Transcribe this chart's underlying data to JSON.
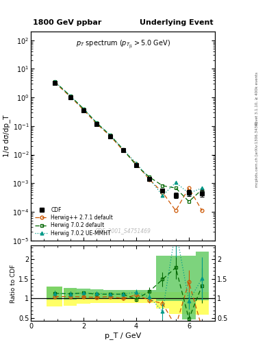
{
  "title_left": "1800 GeV ppbar",
  "title_right": "Underlying Event",
  "ylabel_main": "1/σ dσ/dp_T",
  "ylabel_ratio": "Ratio to CDF",
  "xlabel": "p_T / GeV",
  "watermark": "CDF_2001_S4751469",
  "right_label_top": "Rivet 3.1.10, ≥ 400k events",
  "right_label_bot": "mcplots.cern.ch [arXiv:1306.3436]",
  "cdf_x": [
    0.9,
    1.5,
    2.0,
    2.5,
    3.0,
    3.5,
    4.0,
    4.5,
    5.0,
    5.5,
    6.0,
    6.5
  ],
  "cdf_y": [
    3.2,
    1.0,
    0.35,
    0.115,
    0.044,
    0.014,
    0.0043,
    0.0014,
    0.00055,
    0.00038,
    0.00048,
    0.00045
  ],
  "cdf_yerr": [
    0.18,
    0.05,
    0.018,
    0.006,
    0.002,
    0.0007,
    0.00022,
    8e-05,
    6e-05,
    8e-05,
    0.00012,
    0.00012
  ],
  "hwpp_y": [
    3.35,
    1.05,
    0.365,
    0.118,
    0.046,
    0.014,
    0.0047,
    0.00135,
    0.00048,
    0.00011,
    0.00068,
    0.00011
  ],
  "hw702_y": [
    3.6,
    1.12,
    0.4,
    0.128,
    0.049,
    0.0155,
    0.0042,
    0.00165,
    0.00082,
    0.00068,
    0.00023,
    0.0006
  ],
  "hwue_y": [
    3.6,
    1.12,
    0.4,
    0.13,
    0.049,
    0.0155,
    0.005,
    0.00145,
    0.00037,
    0.00105,
    0.00045,
    0.00068
  ],
  "colors": {
    "cdf": "#000000",
    "hwpp": "#cc5500",
    "hw702": "#006600",
    "hwue": "#009988"
  },
  "xlim": [
    0,
    7
  ],
  "ylim_main": [
    1e-05,
    200
  ],
  "ylim_ratio": [
    0.42,
    2.35
  ],
  "ratio_hwpp": [
    1.05,
    1.05,
    1.04,
    1.03,
    1.05,
    1.0,
    1.09,
    0.96,
    0.87,
    0.29,
    1.42,
    0.24
  ],
  "ratio_hw702": [
    1.13,
    1.12,
    1.14,
    1.11,
    1.11,
    1.11,
    0.98,
    1.18,
    1.49,
    1.79,
    0.48,
    1.33
  ],
  "ratio_hwue": [
    1.13,
    1.12,
    1.14,
    1.13,
    1.11,
    1.11,
    1.16,
    1.04,
    0.67,
    2.76,
    0.94,
    1.51
  ],
  "ratio_hwpp_err": [
    0.06,
    0.05,
    0.04,
    0.04,
    0.04,
    0.04,
    0.06,
    0.07,
    0.09,
    0.1,
    0.3,
    0.1
  ],
  "ratio_hw702_err": [
    0.07,
    0.06,
    0.05,
    0.05,
    0.04,
    0.05,
    0.06,
    0.1,
    0.18,
    0.3,
    0.18,
    0.45
  ],
  "ratio_hwue_err": [
    0.07,
    0.06,
    0.05,
    0.05,
    0.04,
    0.05,
    0.07,
    0.1,
    0.2,
    0.7,
    0.22,
    0.55
  ],
  "yellow_lo": [
    0.8,
    0.82,
    0.87,
    0.88,
    0.89,
    0.89,
    0.88,
    0.88,
    0.75,
    0.6,
    0.6,
    0.58
  ],
  "yellow_hi": [
    1.3,
    1.25,
    1.18,
    1.17,
    1.16,
    1.16,
    1.16,
    1.16,
    1.16,
    1.16,
    1.16,
    1.16
  ],
  "green_lo": [
    0.97,
    0.98,
    1.01,
    1.01,
    1.01,
    1.01,
    1.0,
    0.99,
    0.93,
    0.93,
    0.47,
    0.95
  ],
  "green_hi": [
    1.3,
    1.27,
    1.25,
    1.23,
    1.21,
    1.21,
    1.22,
    1.21,
    2.1,
    2.1,
    2.1,
    2.2
  ],
  "bin_centers": [
    0.9,
    1.5,
    2.0,
    2.5,
    3.0,
    3.5,
    4.0,
    4.5,
    5.0,
    5.5,
    6.0,
    6.5
  ],
  "bin_widths": [
    0.6,
    0.5,
    0.5,
    0.5,
    0.5,
    0.5,
    0.5,
    0.5,
    0.5,
    0.5,
    0.5,
    0.5
  ]
}
